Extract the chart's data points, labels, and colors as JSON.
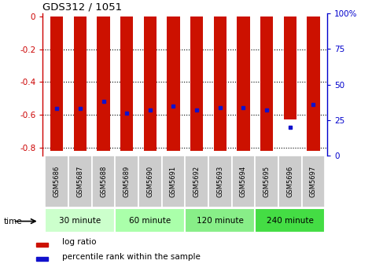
{
  "title": "GDS312 / 1051",
  "samples": [
    "GSM5686",
    "GSM5687",
    "GSM5688",
    "GSM5689",
    "GSM5690",
    "GSM5691",
    "GSM5692",
    "GSM5693",
    "GSM5694",
    "GSM5695",
    "GSM5696",
    "GSM5697"
  ],
  "log_ratios": [
    -0.82,
    -0.82,
    -0.82,
    -0.82,
    -0.82,
    -0.82,
    -0.82,
    -0.82,
    -0.82,
    -0.82,
    -0.63,
    -0.82
  ],
  "percentile_ranks_pct": [
    33,
    33,
    38,
    30,
    32,
    35,
    32,
    34,
    34,
    32,
    20,
    36
  ],
  "bar_color": "#cc1100",
  "dot_color": "#1111cc",
  "bar_width": 0.55,
  "ylim": [
    -0.85,
    0.02
  ],
  "yticks": [
    0,
    -0.2,
    -0.4,
    -0.6,
    -0.8
  ],
  "ytick_labels": [
    "0",
    "-0.2",
    "-0.4",
    "-0.6",
    "-0.8"
  ],
  "right_ytick_pcts": [
    0,
    25,
    50,
    75,
    100
  ],
  "right_ytick_labels": [
    "0",
    "25",
    "50",
    "75",
    "100%"
  ],
  "groups": [
    {
      "label": "30 minute",
      "start": 0,
      "end": 3,
      "color": "#ccffcc"
    },
    {
      "label": "60 minute",
      "start": 3,
      "end": 6,
      "color": "#aaffaa"
    },
    {
      "label": "120 minute",
      "start": 6,
      "end": 9,
      "color": "#88ee88"
    },
    {
      "label": "240 minute",
      "start": 9,
      "end": 12,
      "color": "#44dd44"
    }
  ],
  "time_label": "time",
  "legend_items": [
    {
      "color": "#cc1100",
      "label": "log ratio"
    },
    {
      "color": "#1111cc",
      "label": "percentile rank within the sample"
    }
  ],
  "bg_color": "#ffffff",
  "grid_color": "#000000",
  "left_axis_color": "#cc0000",
  "right_axis_color": "#0000cc",
  "sample_bg_color": "#cccccc"
}
